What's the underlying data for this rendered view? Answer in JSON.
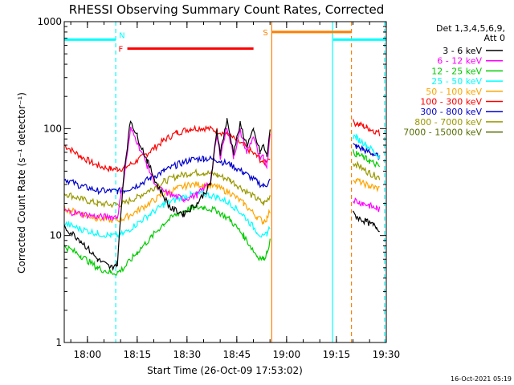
{
  "chart_data": {
    "type": "line",
    "title": "RHESSI Observing Summary Count Rates, Corrected",
    "xlabel": "Start Time (26-Oct-09 17:53:02)",
    "ylabel": "Corrected Count Rate (s⁻¹ detector⁻¹)",
    "x_unit": "minutes after 26-Oct-09 17:53:02",
    "xlim": [
      0,
      97
    ],
    "ylim": [
      1,
      1000
    ],
    "y_scale": "log",
    "x_ticks": [
      {
        "value": 6.97,
        "label": "18:00"
      },
      {
        "value": 21.97,
        "label": "18:15"
      },
      {
        "value": 36.97,
        "label": "18:30"
      },
      {
        "value": 51.97,
        "label": "18:45"
      },
      {
        "value": 66.97,
        "label": "19:00"
      },
      {
        "value": 81.97,
        "label": "19:15"
      },
      {
        "value": 96.97,
        "label": "19:30"
      }
    ],
    "y_ticks": [
      {
        "value": 1,
        "label": "1"
      },
      {
        "value": 10,
        "label": "10"
      },
      {
        "value": 100,
        "label": "100"
      },
      {
        "value": 1000,
        "label": "1000"
      }
    ],
    "legend_header": [
      "Det 1,3,4,5,6,9,",
      "Att 0"
    ],
    "legend_position": "right",
    "grid": false,
    "series": [
      {
        "name": "3 - 6 keV",
        "color": "#000000",
        "x": [
          0,
          5,
          10,
          14,
          16,
          18,
          20,
          22,
          25,
          28,
          32,
          36,
          40,
          44,
          46,
          47,
          49,
          51,
          53,
          55,
          57,
          59,
          60,
          61,
          62,
          87,
          88,
          89,
          90,
          91,
          92,
          93,
          94,
          95
        ],
        "y": [
          12,
          9,
          6,
          5,
          5.5,
          40,
          120,
          85,
          50,
          30,
          18,
          16,
          20,
          30,
          95,
          60,
          120,
          60,
          110,
          70,
          95,
          60,
          70,
          55,
          100,
          16,
          15,
          14.5,
          14,
          13.5,
          13,
          12.5,
          12,
          11.5
        ]
      },
      {
        "name": "6 - 12 keV",
        "color": "#ff00ff",
        "x": [
          0,
          5,
          10,
          14,
          16,
          18,
          20,
          22,
          25,
          28,
          32,
          36,
          40,
          44,
          46,
          47,
          49,
          51,
          53,
          55,
          57,
          59,
          60,
          61,
          62,
          87,
          88,
          89,
          90,
          91,
          92,
          93,
          94,
          95
        ],
        "y": [
          17,
          16,
          15,
          15,
          15,
          35,
          100,
          75,
          45,
          28,
          24,
          22,
          24,
          32,
          85,
          55,
          105,
          55,
          95,
          60,
          85,
          50,
          55,
          45,
          90,
          22,
          21,
          20.5,
          20,
          19.5,
          19,
          18.5,
          18,
          17.5
        ]
      },
      {
        "name": "12 - 25 keV",
        "color": "#00cc00",
        "x": [
          0,
          5,
          10,
          14,
          16,
          18,
          22,
          26,
          30,
          34,
          38,
          42,
          46,
          50,
          54,
          58,
          60,
          61,
          62,
          87,
          88,
          89,
          90,
          91,
          92,
          93,
          94,
          95
        ],
        "y": [
          8,
          6.5,
          5,
          4.5,
          4.5,
          5,
          7,
          9.5,
          13,
          16,
          18,
          18.5,
          17,
          14,
          10,
          6.5,
          6,
          7,
          9,
          60,
          58,
          56,
          54,
          52,
          50,
          48,
          46,
          44
        ]
      },
      {
        "name": "25 - 50 keV",
        "color": "#00ffff",
        "x": [
          0,
          5,
          10,
          14,
          16,
          18,
          22,
          26,
          30,
          34,
          38,
          42,
          46,
          50,
          54,
          58,
          60,
          61,
          62,
          87,
          88,
          89,
          90,
          91,
          92,
          93,
          94,
          95
        ],
        "y": [
          13,
          11.5,
          10.5,
          10,
          10,
          10.5,
          13,
          16,
          19.5,
          22,
          24,
          24.5,
          23,
          20,
          15.5,
          11,
          9.5,
          10.5,
          12,
          85,
          82,
          78,
          74,
          70,
          66,
          62,
          58,
          55
        ]
      },
      {
        "name": "50 - 100 keV",
        "color": "#ffa500",
        "x": [
          0,
          5,
          10,
          14,
          16,
          18,
          22,
          26,
          30,
          34,
          38,
          42,
          46,
          50,
          54,
          58,
          60,
          61,
          62,
          87,
          88,
          89,
          90,
          91,
          92,
          93,
          94,
          95
        ],
        "y": [
          18,
          16,
          14.5,
          14,
          14,
          14.5,
          17,
          20.5,
          24.5,
          27.5,
          30,
          30,
          28.5,
          25,
          20,
          15,
          13.5,
          14.5,
          17,
          34,
          33,
          32,
          31,
          30,
          29,
          28.5,
          28,
          27.5
        ]
      },
      {
        "name": "100 - 300 keV",
        "color": "#ff0000",
        "x": [
          0,
          5,
          10,
          14,
          16,
          18,
          22,
          26,
          30,
          34,
          38,
          42,
          46,
          50,
          54,
          58,
          60,
          61,
          62,
          87,
          88,
          89,
          90,
          91,
          92,
          93,
          94,
          95
        ],
        "y": [
          70,
          55,
          45,
          42,
          42,
          43,
          50,
          62,
          78,
          92,
          100,
          102,
          96,
          85,
          70,
          55,
          48,
          50,
          55,
          115,
          112,
          109,
          106,
          103,
          100,
          97,
          94,
          90
        ]
      },
      {
        "name": "300 - 800 keV",
        "color": "#0000cc",
        "x": [
          0,
          5,
          10,
          14,
          16,
          18,
          22,
          26,
          30,
          34,
          38,
          42,
          46,
          50,
          54,
          58,
          60,
          61,
          62,
          87,
          88,
          89,
          90,
          91,
          92,
          93,
          94,
          95
        ],
        "y": [
          34,
          29,
          26.5,
          26,
          26,
          26.5,
          29.5,
          34.5,
          40,
          46,
          51,
          53,
          51,
          46,
          39,
          32,
          29,
          30,
          33,
          70,
          68,
          66,
          64,
          62,
          60,
          58,
          56,
          54
        ]
      },
      {
        "name": "800 - 7000 keV",
        "color": "#999900",
        "x": [
          0,
          5,
          10,
          14,
          16,
          18,
          22,
          26,
          30,
          34,
          38,
          42,
          46,
          50,
          54,
          58,
          60,
          61,
          62,
          87,
          88,
          89,
          90,
          91,
          92,
          93,
          94,
          95
        ],
        "y": [
          25,
          22,
          20,
          19.5,
          19.5,
          20,
          23,
          27,
          32,
          36,
          38.5,
          39,
          37,
          33,
          27,
          22,
          20,
          21,
          24,
          48,
          46,
          44,
          42,
          40,
          38.5,
          37,
          36,
          35
        ]
      },
      {
        "name": "7000 - 15000 keV",
        "color": "#556b00",
        "x": [],
        "y": []
      }
    ],
    "intervals": [
      {
        "label": "",
        "color": "#00ffff",
        "y": 680,
        "x": [
          0,
          15.5
        ]
      },
      {
        "label": "N",
        "color": "#00ffff",
        "y": 680,
        "x": [
          15.5,
          15.5
        ]
      },
      {
        "label": "F",
        "color": "#ff0000",
        "y": 560,
        "x": [
          19,
          57
        ]
      },
      {
        "label": "S",
        "color": "#ff7f00",
        "y": 800,
        "x": [
          62.5,
          86.5
        ]
      },
      {
        "label": "",
        "color": "#00ffff",
        "y": 680,
        "x": [
          81,
          97
        ]
      }
    ],
    "vertical_lines": [
      {
        "x": 15.5,
        "color": "#00ffff",
        "dashed": true
      },
      {
        "x": 62.5,
        "color": "#ff7f00",
        "dashed": false
      },
      {
        "x": 80.8,
        "color": "#00ffff",
        "dashed": false
      },
      {
        "x": 86.5,
        "color": "#ff7f00",
        "dashed": true
      },
      {
        "x": 96.5,
        "color": "#00ffff",
        "dashed": true
      }
    ]
  },
  "footer": {
    "timestamp": "16-Oct-2021 05:19"
  }
}
